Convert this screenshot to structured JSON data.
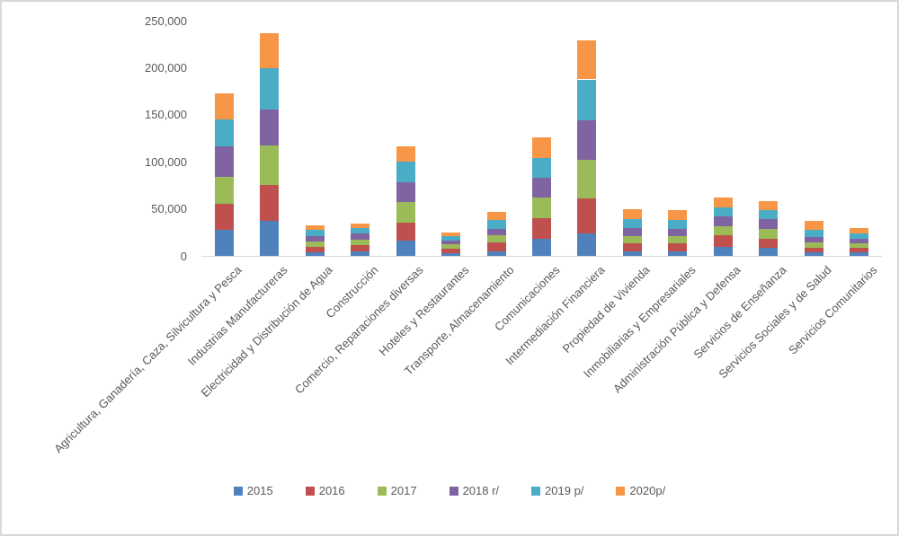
{
  "chart_data": {
    "type": "bar",
    "stacked": true,
    "title": "",
    "xlabel": "",
    "ylabel": "",
    "ylim": [
      0,
      250000
    ],
    "ytick_interval": 50000,
    "ytick_labels": [
      "0",
      "50,000",
      "100,000",
      "150,000",
      "200,000",
      "250,000"
    ],
    "grid": false,
    "legend_position": "bottom",
    "categories": [
      "Agricultura, Ganadería, Caza, Silvicultura y Pesca",
      "Industrias Manufactureras",
      "Electricidad y Distribución de Agua",
      "Construcción",
      "Comercio, Reparaciones diversas",
      "Hoteles y Restaurantes",
      "Transporte, Almacenamiento",
      "Comunicaciones",
      "Intermediación Financiera",
      "Propiedad de Vivienda",
      "Inmobiliarias y Empresariales",
      "Administración Pública y Defensa",
      "Servicios de Enseñanza",
      "Servicios Sociales y de Salud",
      "Servicios Comunitarios"
    ],
    "series": [
      {
        "name": "2015",
        "color": "#4F81BD",
        "values": [
          27500,
          37000,
          3800,
          4800,
          16500,
          3000,
          5000,
          18000,
          24000,
          4500,
          5000,
          10000,
          8500,
          4000,
          4000
        ]
      },
      {
        "name": "2016",
        "color": "#C0504D",
        "values": [
          28000,
          38000,
          6200,
          7000,
          19000,
          5000,
          9000,
          22000,
          37000,
          8500,
          8000,
          12000,
          9500,
          4500,
          5000
        ]
      },
      {
        "name": "2017",
        "color": "#9BBB59",
        "values": [
          28500,
          42000,
          5200,
          5400,
          21500,
          4200,
          7500,
          22000,
          41500,
          8000,
          8000,
          9500,
          10500,
          5500,
          4500
        ]
      },
      {
        "name": "2018 r/",
        "color": "#8064A2",
        "values": [
          32000,
          38500,
          6200,
          7000,
          21500,
          4300,
          7500,
          21000,
          41500,
          8500,
          8000,
          10500,
          10500,
          6500,
          5000
        ]
      },
      {
        "name": "2019 p/",
        "color": "#4BACC6",
        "values": [
          29500,
          44000,
          6200,
          5300,
          21500,
          4500,
          9500,
          21000,
          43500,
          10000,
          9500,
          9500,
          9500,
          7000,
          5500
        ]
      },
      {
        "name": "2020p/",
        "color": "#F79646",
        "values": [
          27500,
          37500,
          4400,
          4500,
          16000,
          3500,
          8500,
          22000,
          41500,
          10000,
          10000,
          10500,
          9500,
          9500,
          6000
        ]
      }
    ]
  }
}
